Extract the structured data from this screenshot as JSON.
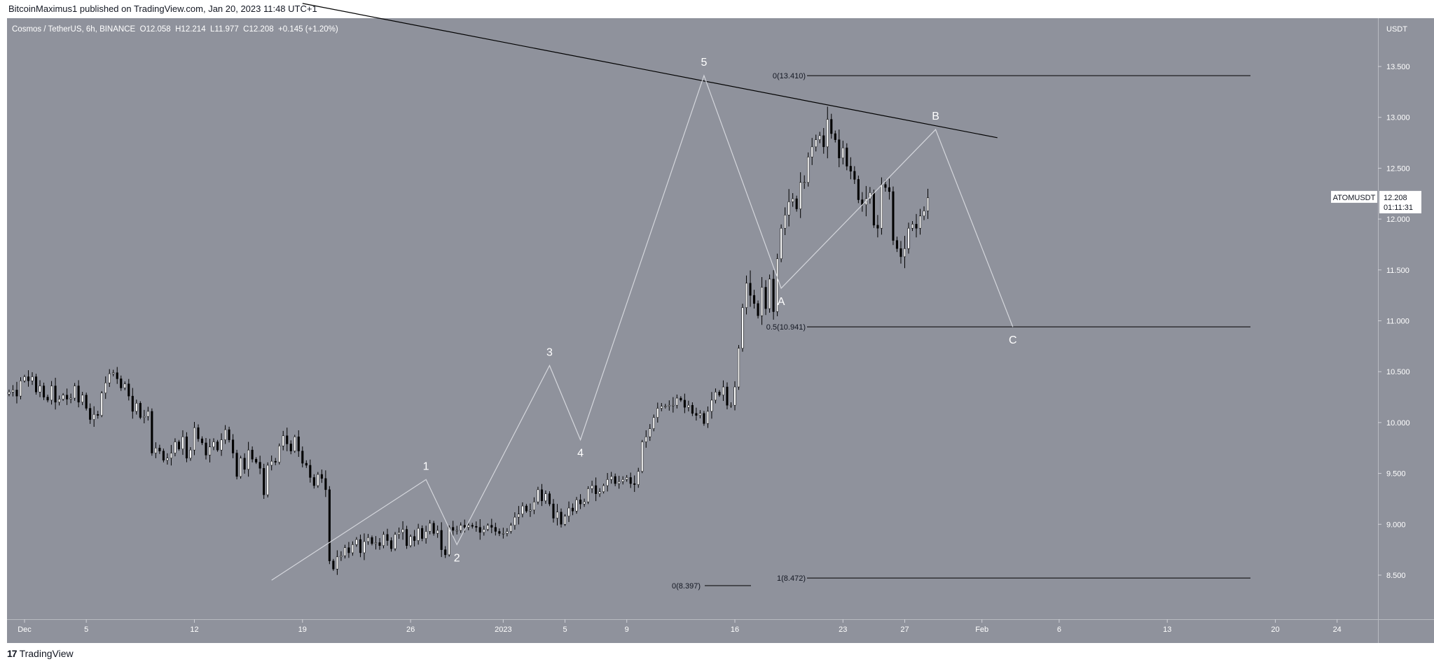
{
  "header": {
    "publisher": "BitcoinMaximus1 published on TradingView.com, Jan 20, 2023 11:48 UTC+1"
  },
  "legend": {
    "symbol": "Cosmos / TetherUS, 6h, BINANCE",
    "open_label": "O",
    "open": "12.058",
    "high_label": "H",
    "high": "12.214",
    "low_label": "L",
    "low": "11.977",
    "close_label": "C",
    "close": "12.208",
    "change": "+0.145 (+1.20%)"
  },
  "price_axis": {
    "currency": "USDT",
    "ticks": [
      "13.500",
      "13.000",
      "12.500",
      "12.000",
      "11.500",
      "11.000",
      "10.500",
      "10.000",
      "9.500",
      "9.000",
      "8.500"
    ]
  },
  "time_axis": {
    "ticks": [
      "Dec",
      "5",
      "12",
      "19",
      "26",
      "2023",
      "5",
      "9",
      "16",
      "23",
      "27",
      "Feb",
      "6",
      "13",
      "20",
      "24"
    ]
  },
  "price_label": {
    "ticker": "ATOMUSDT",
    "price": "12.208",
    "countdown": "01:11:31"
  },
  "wave_labels": [
    "1",
    "2",
    "3",
    "4",
    "5",
    "A",
    "B",
    "C"
  ],
  "fib_labels": [
    {
      "text": "0(13.410)"
    },
    {
      "text": "0.5(10.941)"
    },
    {
      "text": "1(8.472)"
    },
    {
      "text": "0(8.397)"
    }
  ],
  "footer": {
    "logo": "17",
    "brand": "TradingView"
  },
  "colors": {
    "background": "#8f929c",
    "candle_up": "#ffffff",
    "candle_down": "#000000",
    "wick": "#000000",
    "wave_line": "#d4d6dc",
    "trend_line": "#000000",
    "axis_text": "#ffffff"
  },
  "chart_data": {
    "type": "candlestick",
    "title": "Cosmos / TetherUS, 6h, BINANCE",
    "ylabel": "USDT",
    "ylim": [
      8.2,
      13.75
    ],
    "x_start": "2022-11-30",
    "bar_interval_hours": 6,
    "close_series": [
      10.3,
      10.32,
      10.26,
      10.41,
      10.45,
      10.41,
      10.45,
      10.3,
      10.36,
      10.25,
      10.22,
      10.36,
      10.2,
      10.23,
      10.27,
      10.23,
      10.24,
      10.36,
      10.2,
      10.27,
      10.14,
      10.03,
      10.08,
      10.07,
      10.29,
      10.39,
      10.48,
      10.49,
      10.43,
      10.34,
      10.38,
      10.26,
      10.11,
      10.19,
      10.05,
      10.06,
      10.11,
      9.7,
      9.75,
      9.72,
      9.63,
      9.65,
      9.7,
      9.81,
      9.74,
      9.86,
      9.65,
      9.73,
      9.95,
      9.84,
      9.8,
      9.68,
      9.76,
      9.81,
      9.73,
      9.83,
      9.93,
      9.83,
      9.7,
      9.47,
      9.65,
      9.54,
      9.73,
      9.64,
      9.61,
      9.55,
      9.29,
      9.58,
      9.62,
      9.61,
      9.77,
      9.87,
      9.79,
      9.72,
      9.86,
      9.72,
      9.6,
      9.58,
      9.46,
      9.38,
      9.49,
      9.45,
      9.34,
      8.64,
      8.56,
      8.68,
      8.69,
      8.77,
      8.72,
      8.8,
      8.85,
      8.72,
      8.83,
      8.87,
      8.81,
      8.82,
      8.79,
      8.9,
      8.84,
      8.76,
      8.9,
      8.92,
      8.95,
      8.79,
      8.88,
      8.84,
      8.96,
      8.86,
      8.93,
      9.01,
      8.91,
      8.94,
      8.75,
      8.7,
      8.97,
      8.94,
      8.94,
      8.99,
      8.97,
      8.99,
      8.98,
      8.97,
      8.92,
      8.95,
      8.99,
      8.97,
      8.93,
      8.91,
      8.91,
      8.93,
      8.99,
      9.07,
      9.1,
      9.18,
      9.13,
      9.14,
      9.22,
      9.34,
      9.23,
      9.3,
      9.2,
      9.06,
      9.12,
      9.0,
      9.08,
      9.16,
      9.13,
      9.24,
      9.2,
      9.22,
      9.35,
      9.38,
      9.3,
      9.32,
      9.38,
      9.44,
      9.47,
      9.4,
      9.42,
      9.44,
      9.46,
      9.4,
      9.39,
      9.52,
      9.81,
      9.86,
      9.94,
      10.05,
      10.14,
      10.16,
      10.16,
      10.17,
      10.17,
      10.24,
      10.22,
      10.15,
      10.17,
      10.09,
      10.07,
      10.09,
      9.99,
      10.11,
      10.22,
      10.3,
      10.27,
      10.35,
      10.17,
      10.17,
      10.35,
      10.73,
      11.13,
      11.37,
      11.25,
      11.17,
      11.05,
      11.33,
      11.12,
      11.41,
      11.09,
      11.61,
      11.91,
      12.04,
      12.17,
      12.2,
      12.1,
      12.36,
      12.36,
      12.61,
      12.71,
      12.78,
      12.82,
      12.71,
      12.98,
      12.84,
      12.78,
      12.6,
      12.7,
      12.52,
      12.47,
      12.39,
      12.19,
      12.14,
      12.2,
      12.26,
      11.94,
      11.91,
      12.34,
      12.31,
      12.27,
      11.79,
      11.71,
      11.63,
      11.71,
      11.91,
      11.95,
      11.91,
      12.03,
      12.08,
      12.21
    ],
    "wave_points": [
      {
        "label": "1",
        "date": "2022-12-27",
        "price": 9.44
      },
      {
        "label": "2",
        "date": "2022-12-29",
        "price": 8.8
      },
      {
        "label": "3",
        "date": "2023-01-04",
        "price": 10.56
      },
      {
        "label": "4",
        "date": "2023-01-06",
        "price": 9.83
      },
      {
        "label": "5",
        "date": "2023-01-14",
        "price": 13.41
      },
      {
        "label": "A",
        "date": "2023-01-19",
        "price": 11.32
      },
      {
        "label": "B",
        "date": "2023-01-29",
        "price": 12.88
      },
      {
        "label": "C",
        "date": "2023-02-03",
        "price": 10.94
      }
    ],
    "resistance_line": [
      {
        "date": "2022-12-19",
        "price": 14.12
      },
      {
        "date": "2023-02-02",
        "price": 12.8
      }
    ],
    "fib_levels": [
      {
        "label": "0(13.410)",
        "price": 13.41
      },
      {
        "label": "0.5(10.941)",
        "price": 10.941
      },
      {
        "label": "1(8.472)",
        "price": 8.472
      },
      {
        "label": "0(8.397)",
        "price": 8.397
      }
    ],
    "last_price": 12.208
  }
}
